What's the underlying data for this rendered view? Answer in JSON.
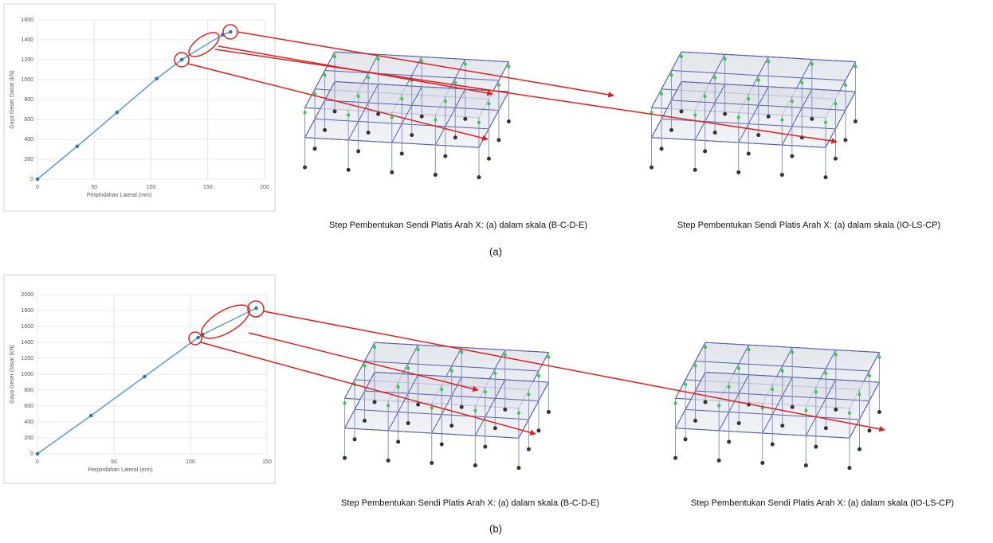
{
  "chart_data": [
    {
      "type": "line",
      "xlabel": "Perpindahan Lateral (mm)",
      "ylabel": "Gaya Geser Dasar (kN)",
      "x": [
        0,
        35,
        70,
        105,
        127,
        163,
        170
      ],
      "values": [
        0,
        330,
        670,
        1010,
        1200,
        1450,
        1480
      ],
      "color": "#5b9bd5",
      "marker_color": "#2e75b6",
      "xlim": [
        0,
        200
      ],
      "xticks": [
        0,
        50,
        100,
        150,
        200
      ],
      "ylim": [
        0,
        1600
      ],
      "yticks": [
        0,
        200,
        400,
        600,
        800,
        1000,
        1200,
        1400,
        1600
      ],
      "grid": true
    },
    {
      "type": "line",
      "xlabel": "Perpindahan Lateral (mm)",
      "ylabel": "Gaya Geser Dasar (kN)",
      "x": [
        0,
        35,
        70,
        105,
        108,
        143
      ],
      "values": [
        0,
        480,
        970,
        1460,
        1500,
        1830
      ],
      "color": "#5b9bd5",
      "marker_color": "#2e75b6",
      "xlim": [
        0,
        150
      ],
      "xticks": [
        0,
        50,
        100,
        150
      ],
      "ylim": [
        0,
        2000
      ],
      "yticks": [
        0,
        200,
        400,
        600,
        800,
        1000,
        1200,
        1400,
        1600,
        1800,
        2000
      ],
      "grid": true
    }
  ],
  "panels": [
    {
      "captions": [
        "Step Pembentukan Sendi Platis Arah X: (a) dalam skala (B-C-D-E)",
        "Step Pembentukan Sendi Platis Arah X: (a) dalam skala (IO-LS-CP)"
      ],
      "label": "(a)"
    },
    {
      "captions": [
        "Step Pembentukan Sendi Platis Arah X: (a) dalam skala (B-C-D-E)",
        "Step Pembentukan Sendi Platis Arah X: (a) dalam skala (IO-LS-CP)"
      ],
      "label": "(b)"
    }
  ]
}
